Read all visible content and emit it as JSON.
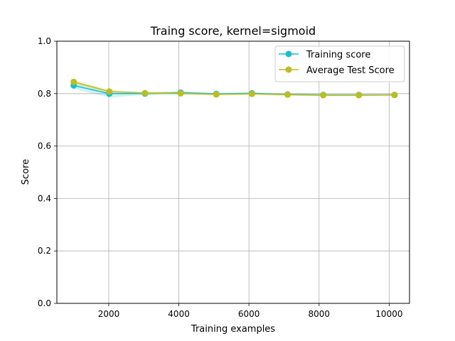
{
  "chart_data": {
    "type": "line",
    "title": "Traing score, kernel=sigmoid",
    "xlabel": "Training examples",
    "ylabel": "Score",
    "xlim": [
      520,
      10580
    ],
    "ylim": [
      0.0,
      1.0
    ],
    "xticks": [
      2000,
      4000,
      6000,
      8000,
      10000
    ],
    "yticks": [
      0.0,
      0.2,
      0.4,
      0.6,
      0.8,
      1.0
    ],
    "grid": true,
    "legend_position": "top-right",
    "x": [
      1000,
      2017,
      3034,
      4051,
      5068,
      6085,
      7102,
      8119,
      9136,
      10153
    ],
    "series": [
      {
        "name": "Training score",
        "color": "#17becf",
        "values": [
          0.831,
          0.8,
          0.8,
          0.804,
          0.799,
          0.801,
          0.797,
          0.795,
          0.795,
          0.795
        ],
        "band": [
          0.818,
          0.844,
          0.785,
          0.808,
          0.795,
          0.806,
          0.798,
          0.81,
          0.795,
          0.803,
          0.797,
          0.806,
          0.793,
          0.801,
          0.791,
          0.799,
          0.792,
          0.798,
          0.792,
          0.798
        ]
      },
      {
        "name": "Average Test Score",
        "color": "#bcbd22",
        "values": [
          0.845,
          0.808,
          0.802,
          0.801,
          0.797,
          0.799,
          0.796,
          0.794,
          0.794,
          0.795
        ],
        "band": [
          0.836,
          0.854,
          0.802,
          0.814,
          0.797,
          0.807,
          0.796,
          0.806,
          0.793,
          0.801,
          0.795,
          0.803,
          0.792,
          0.8,
          0.79,
          0.798,
          0.79,
          0.798,
          0.791,
          0.799
        ]
      }
    ]
  }
}
